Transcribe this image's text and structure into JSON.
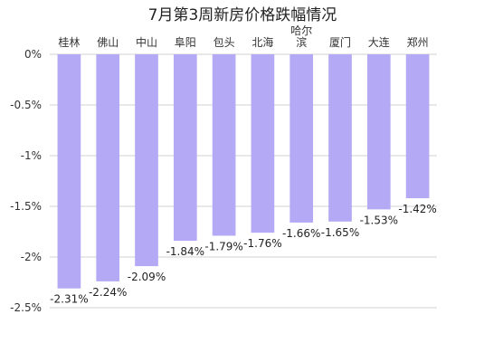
{
  "chart_data": {
    "type": "bar",
    "title": "7月第3周新房价格跌幅情况",
    "categories": [
      "桂林",
      "佛山",
      "中山",
      "阜阳",
      "包头",
      "北海",
      "哈尔滨",
      "厦门",
      "大连",
      "郑州"
    ],
    "values": [
      -2.31,
      -2.24,
      -2.09,
      -1.84,
      -1.79,
      -1.76,
      -1.66,
      -1.65,
      -1.53,
      -1.42
    ],
    "data_labels": [
      "-2.31%",
      "-2.24%",
      "-2.09%",
      "-1.84%",
      "-1.79%",
      "-1.76%",
      "-1.66%",
      "-1.65%",
      "-1.53%",
      "-1.42%"
    ],
    "yticks": [
      0,
      -0.5,
      -1,
      -1.5,
      -2,
      -2.5
    ],
    "ytick_labels": [
      "0%",
      "-0.5%",
      "-1%",
      "-1.5%",
      "-2%",
      "-2.5%"
    ],
    "ylim": [
      -2.5,
      0
    ],
    "xlabel": "",
    "ylabel": "",
    "category_position": "top",
    "grid": true,
    "bar_color": "#b3a9f5",
    "grid_color": "#d0d0d0"
  }
}
